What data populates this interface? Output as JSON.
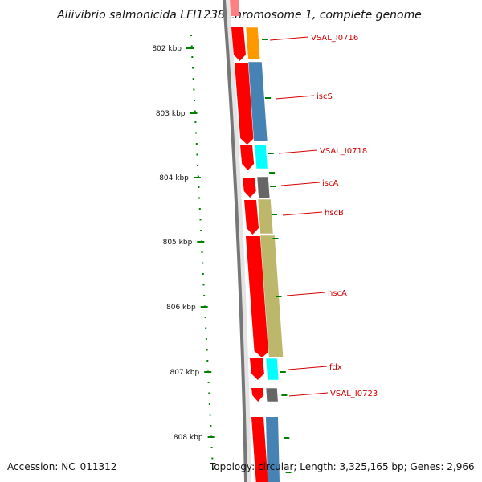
{
  "title": "Aliivibrio salmonicida LFI1238 chromosome 1, complete genome",
  "accession": "Accession: NC_011312",
  "topology": "Topology: circular; Length: 3,325,165 bp; Genes: 2,966",
  "scale": {
    "ticks": [
      "802 kbp",
      "803 kbp",
      "804 kbp",
      "805 kbp",
      "806 kbp",
      "807 kbp",
      "808 kbp"
    ]
  },
  "colors": {
    "backbone": "#777777",
    "tick": "#008000",
    "red_track": "#ff0000",
    "label": "#d40000"
  },
  "genes": [
    {
      "name": "VSAL_I0716",
      "color": "#ff9900"
    },
    {
      "name": "iscS",
      "color": "#4682b4"
    },
    {
      "name": "VSAL_I0718",
      "color": "#00ffff"
    },
    {
      "name": "iscA",
      "color": "#666666"
    },
    {
      "name": "hscB",
      "color": "#bdb76b"
    },
    {
      "name": "hscA",
      "color": "#bdb76b"
    },
    {
      "name": "fdx",
      "color": "#00ffff"
    },
    {
      "name": "VSAL_I0723",
      "color": "#666666"
    }
  ]
}
